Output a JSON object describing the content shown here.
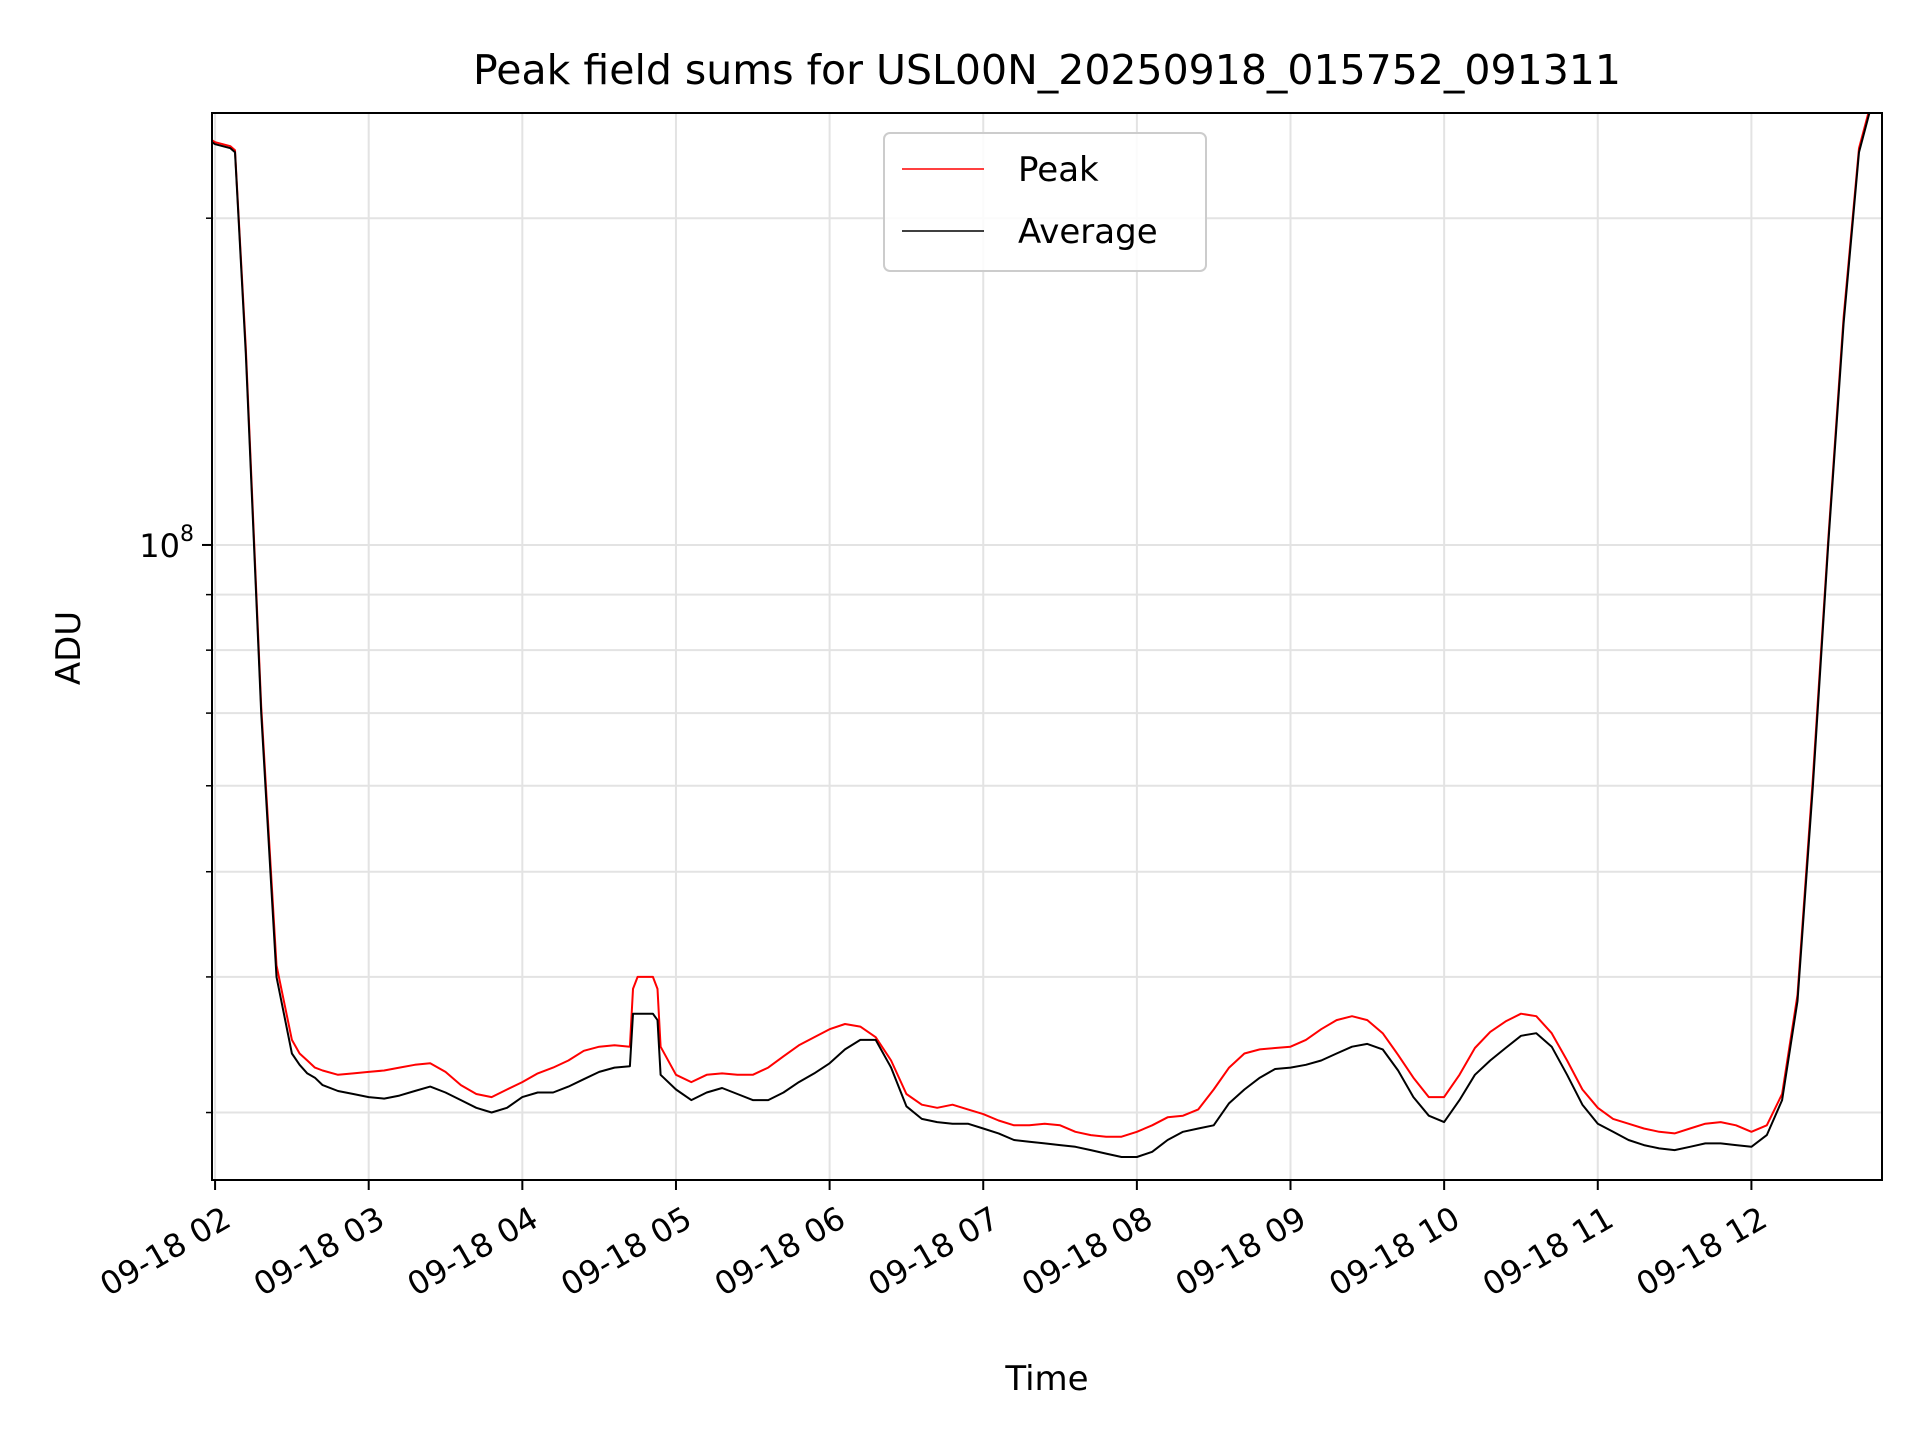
{
  "chart_data": {
    "type": "line",
    "title": "Peak field sums for USL00N_20250918_015752_091311",
    "xlabel": "Time",
    "ylabel": "ADU",
    "yscale": "log",
    "xlim": [
      1.98,
      12.85
    ],
    "ylim": [
      26000000,
      250000000
    ],
    "x_ticks": [
      {
        "value": 2,
        "label": "09-18 02"
      },
      {
        "value": 3,
        "label": "09-18 03"
      },
      {
        "value": 4,
        "label": "09-18 04"
      },
      {
        "value": 5,
        "label": "09-18 05"
      },
      {
        "value": 6,
        "label": "09-18 06"
      },
      {
        "value": 7,
        "label": "09-18 07"
      },
      {
        "value": 8,
        "label": "09-18 08"
      },
      {
        "value": 9,
        "label": "09-18 09"
      },
      {
        "value": 10,
        "label": "09-18 10"
      },
      {
        "value": 11,
        "label": "09-18 11"
      },
      {
        "value": 12,
        "label": "09-18 12"
      }
    ],
    "y_ticks": [
      {
        "value": 100000000,
        "base": "10",
        "exponent": "8"
      }
    ],
    "y_minor_ticks": [
      30000000,
      40000000,
      50000000,
      60000000,
      70000000,
      80000000,
      90000000,
      200000000
    ],
    "grid": true,
    "legend_position": "top-center",
    "legend": [
      {
        "name": "Peak",
        "color": "#ff0000"
      },
      {
        "name": "Average",
        "color": "#000000"
      }
    ],
    "series": [
      {
        "name": "Average",
        "color": "#000000",
        "x": [
          1.98,
          2.0,
          2.05,
          2.1,
          2.13,
          2.2,
          2.3,
          2.4,
          2.5,
          2.55,
          2.6,
          2.65,
          2.7,
          2.8,
          2.9,
          3.0,
          3.1,
          3.2,
          3.3,
          3.4,
          3.5,
          3.6,
          3.7,
          3.8,
          3.9,
          4.0,
          4.1,
          4.2,
          4.3,
          4.4,
          4.5,
          4.6,
          4.7,
          4.72,
          4.75,
          4.85,
          4.88,
          4.9,
          5.0,
          5.1,
          5.2,
          5.3,
          5.4,
          5.5,
          5.6,
          5.7,
          5.8,
          5.9,
          6.0,
          6.1,
          6.2,
          6.3,
          6.4,
          6.5,
          6.6,
          6.7,
          6.8,
          6.9,
          7.0,
          7.1,
          7.2,
          7.3,
          7.4,
          7.5,
          7.6,
          7.7,
          7.8,
          7.9,
          8.0,
          8.1,
          8.2,
          8.3,
          8.4,
          8.5,
          8.6,
          8.7,
          8.8,
          8.9,
          9.0,
          9.1,
          9.2,
          9.3,
          9.4,
          9.5,
          9.6,
          9.7,
          9.8,
          9.9,
          10.0,
          10.1,
          10.2,
          10.3,
          10.4,
          10.5,
          10.6,
          10.7,
          10.8,
          10.9,
          11.0,
          11.1,
          11.2,
          11.3,
          11.4,
          11.5,
          11.6,
          11.7,
          11.8,
          11.9,
          12.0,
          12.1,
          12.2,
          12.3,
          12.4,
          12.5,
          12.6,
          12.7,
          12.8,
          12.85
        ],
        "y": [
          235000000,
          234000000,
          233000000,
          232000000,
          230000000,
          150000000,
          70000000,
          40000000,
          34000000,
          33200000,
          32600000,
          32300000,
          31800000,
          31400000,
          31200000,
          31000000,
          30900000,
          31100000,
          31400000,
          31700000,
          31300000,
          30800000,
          30300000,
          30000000,
          30300000,
          31000000,
          31300000,
          31300000,
          31700000,
          32200000,
          32700000,
          33000000,
          33100000,
          37000000,
          37000000,
          37000000,
          36500000,
          32500000,
          31500000,
          30800000,
          31300000,
          31600000,
          31200000,
          30800000,
          30800000,
          31300000,
          32000000,
          32600000,
          33300000,
          34300000,
          35000000,
          35000000,
          33000000,
          30400000,
          29600000,
          29400000,
          29300000,
          29300000,
          29000000,
          28700000,
          28300000,
          28200000,
          28100000,
          28000000,
          27900000,
          27700000,
          27500000,
          27300000,
          27300000,
          27600000,
          28300000,
          28800000,
          29000000,
          29200000,
          30600000,
          31500000,
          32300000,
          32900000,
          33000000,
          33200000,
          33500000,
          34000000,
          34500000,
          34700000,
          34300000,
          32800000,
          31000000,
          29800000,
          29400000,
          30800000,
          32500000,
          33500000,
          34400000,
          35300000,
          35500000,
          34500000,
          32500000,
          30500000,
          29300000,
          28800000,
          28300000,
          28000000,
          27800000,
          27700000,
          27900000,
          28100000,
          28100000,
          28000000,
          27900000,
          28600000,
          30800000,
          38000000,
          60000000,
          100000000,
          160000000,
          230000000,
          260000000,
          260000000
        ]
      },
      {
        "name": "Peak",
        "color": "#ff0000",
        "x": [
          1.98,
          2.0,
          2.05,
          2.1,
          2.13,
          2.2,
          2.3,
          2.4,
          2.5,
          2.55,
          2.6,
          2.65,
          2.7,
          2.8,
          2.9,
          3.0,
          3.1,
          3.2,
          3.3,
          3.4,
          3.5,
          3.6,
          3.7,
          3.8,
          3.9,
          4.0,
          4.1,
          4.2,
          4.3,
          4.4,
          4.5,
          4.6,
          4.7,
          4.72,
          4.75,
          4.85,
          4.88,
          4.9,
          5.0,
          5.1,
          5.2,
          5.3,
          5.4,
          5.5,
          5.6,
          5.7,
          5.8,
          5.9,
          6.0,
          6.1,
          6.2,
          6.3,
          6.4,
          6.5,
          6.6,
          6.7,
          6.8,
          6.9,
          7.0,
          7.1,
          7.2,
          7.3,
          7.4,
          7.5,
          7.6,
          7.7,
          7.8,
          7.9,
          8.0,
          8.1,
          8.2,
          8.3,
          8.4,
          8.5,
          8.6,
          8.7,
          8.8,
          8.9,
          9.0,
          9.1,
          9.2,
          9.3,
          9.4,
          9.5,
          9.6,
          9.7,
          9.8,
          9.9,
          10.0,
          10.1,
          10.2,
          10.3,
          10.4,
          10.5,
          10.6,
          10.7,
          10.8,
          10.9,
          11.0,
          11.1,
          11.2,
          11.3,
          11.4,
          11.5,
          11.6,
          11.7,
          11.8,
          11.9,
          12.0,
          12.1,
          12.2,
          12.3,
          12.4,
          12.5,
          12.6,
          12.7,
          12.8,
          12.85
        ],
        "y": [
          236000000,
          235000000,
          234000000,
          233000000,
          231000000,
          152000000,
          71000000,
          41000000,
          35000000,
          34000000,
          33500000,
          33000000,
          32800000,
          32500000,
          32600000,
          32700000,
          32800000,
          33000000,
          33200000,
          33300000,
          32700000,
          31800000,
          31200000,
          31000000,
          31500000,
          32000000,
          32600000,
          33000000,
          33500000,
          34200000,
          34500000,
          34600000,
          34500000,
          39000000,
          40000000,
          40000000,
          39000000,
          34500000,
          32500000,
          32000000,
          32500000,
          32600000,
          32500000,
          32500000,
          33000000,
          33800000,
          34600000,
          35200000,
          35800000,
          36200000,
          36000000,
          35200000,
          33500000,
          31200000,
          30500000,
          30300000,
          30500000,
          30200000,
          29900000,
          29500000,
          29200000,
          29200000,
          29300000,
          29200000,
          28800000,
          28600000,
          28500000,
          28500000,
          28800000,
          29200000,
          29700000,
          29800000,
          30200000,
          31500000,
          33000000,
          34000000,
          34300000,
          34400000,
          34500000,
          35000000,
          35800000,
          36500000,
          36800000,
          36500000,
          35500000,
          33900000,
          32300000,
          31000000,
          31000000,
          32500000,
          34400000,
          35600000,
          36400000,
          37000000,
          36800000,
          35500000,
          33500000,
          31500000,
          30300000,
          29600000,
          29300000,
          29000000,
          28800000,
          28700000,
          29000000,
          29300000,
          29400000,
          29200000,
          28800000,
          29200000,
          31200000,
          38500000,
          61000000,
          101000000,
          162000000,
          232000000,
          262000000,
          262000000
        ]
      }
    ]
  }
}
